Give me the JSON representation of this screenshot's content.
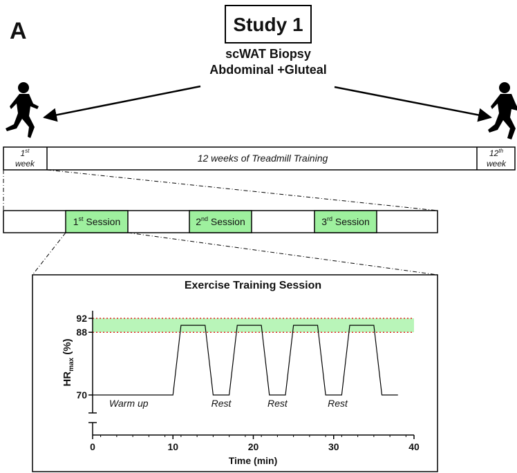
{
  "panel_label": "A",
  "title": "Study 1",
  "subtitle": [
    "scWAT Biopsy",
    "Abdominal +Gluteal"
  ],
  "timeline": {
    "first": {
      "number": "1",
      "sup": "st",
      "unit": "week"
    },
    "main": "12 weeks of Treadmill Training",
    "last": {
      "number": "12",
      "sup": "th",
      "unit": "week"
    }
  },
  "sessions": [
    {
      "number": "1",
      "sup": "st",
      "text": " Session"
    },
    {
      "number": "2",
      "sup": "nd",
      "text": " Session"
    },
    {
      "number": "3",
      "sup": "rd",
      "text": " Session"
    }
  ],
  "plot": {
    "title": "Exercise Training Session",
    "x_label": "Time (min)",
    "y_label": {
      "main": "HR",
      "sub": "max",
      "unit": " (%)"
    },
    "x": [
      0,
      10,
      11,
      14,
      15,
      17,
      18,
      21,
      22,
      24,
      25,
      28,
      29,
      31,
      32,
      35,
      36,
      38
    ],
    "y": [
      70,
      70,
      90,
      90,
      70,
      70,
      90,
      90,
      70,
      70,
      90,
      90,
      70,
      70,
      90,
      90,
      70,
      70
    ],
    "xlim": [
      0,
      40
    ],
    "xticks": [
      0,
      10,
      20,
      30,
      40
    ],
    "yticks": [
      70,
      88,
      92
    ],
    "band": [
      88,
      92
    ],
    "annotations": [
      "Warm up",
      "Rest",
      "Rest",
      "Rest"
    ]
  }
}
